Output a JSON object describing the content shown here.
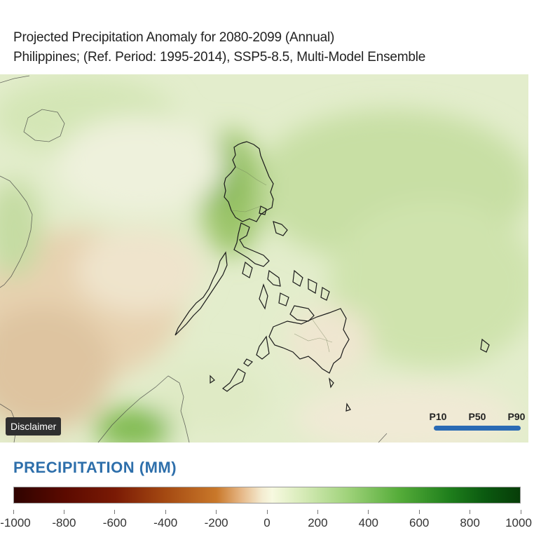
{
  "title": {
    "line1": "Projected Precipitation Anomaly for 2080-2099 (Annual)",
    "line2": "Philippines; (Ref. Period: 1995-2014), SSP5-8.5, Multi-Model Ensemble"
  },
  "map": {
    "disclaimer_label": "Disclaimer",
    "percentiles": [
      "P10",
      "P50",
      "P90"
    ],
    "selected_percentile": "P50",
    "slider_color": "#2a6ab4"
  },
  "legend": {
    "title": "PRECIPITATION (MM)",
    "ticks": [
      "-1000",
      "-800",
      "-600",
      "-400",
      "-200",
      "0",
      "200",
      "400",
      "600",
      "800",
      "1000"
    ],
    "range": [
      -1000,
      1000
    ],
    "colors": [
      "#2f0300",
      "#7a1a05",
      "#c9782a",
      "#f7f9e0",
      "#9fd27a",
      "#1f7f1c",
      "#073d08"
    ]
  }
}
